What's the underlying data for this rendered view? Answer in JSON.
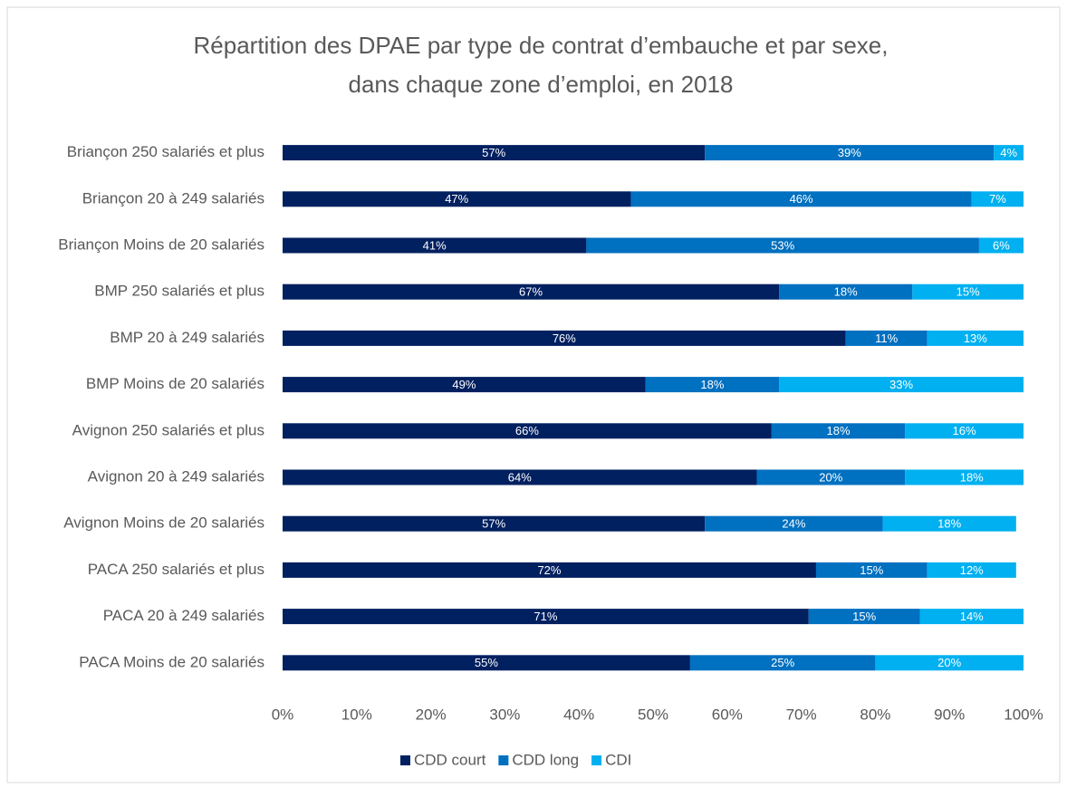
{
  "chart_data": {
    "type": "stacked_barh",
    "title": [
      "Répartition des DPAE par type de contrat d’embauche et par sexe,",
      "dans chaque zone d’emploi, en 2018"
    ],
    "categories": [
      "Briançon 250 salariés et plus",
      "Briançon 20 à 249 salariés",
      "Briançon Moins de 20 salariés",
      "BMP 250 salariés et plus",
      "BMP 20 à 249 salariés",
      "BMP Moins de 20 salariés",
      "Avignon 250 salariés et plus",
      "Avignon 20 à 249 salariés",
      "Avignon Moins de 20 salariés",
      "PACA 250 salariés et plus",
      "PACA 20 à 249 salariés",
      "PACA Moins de 20 salariés"
    ],
    "series": [
      {
        "name": "CDD court",
        "color": "#002060",
        "values": [
          57,
          47,
          41,
          67,
          76,
          49,
          66,
          64,
          57,
          72,
          71,
          55
        ],
        "value_labels": [
          "57%",
          "47%",
          "41%",
          "67%",
          "76%",
          "49%",
          "66%",
          "64%",
          "57%",
          "72%",
          "71%",
          "55%"
        ]
      },
      {
        "name": "CDD long",
        "color": "#0070c0",
        "values": [
          39,
          46,
          53,
          18,
          11,
          18,
          18,
          20,
          24,
          15,
          15,
          25
        ],
        "value_labels": [
          "39%",
          "46%",
          "53%",
          "18%",
          "11%",
          "18%",
          "18%",
          "20%",
          "24%",
          "15%",
          "15%",
          "25%"
        ]
      },
      {
        "name": "CDI",
        "color": "#00b0f0",
        "values": [
          4,
          7,
          6,
          15,
          13,
          33,
          16,
          18,
          18,
          12,
          14,
          20
        ],
        "value_labels": [
          "4%",
          "7%",
          "6%",
          "15%",
          "13%",
          "33%",
          "16%",
          "18%",
          "18%",
          "12%",
          "14%",
          "20%"
        ]
      }
    ],
    "xlim": [
      0,
      100
    ],
    "xticks": [
      {
        "value": 0,
        "label": "0%"
      },
      {
        "value": 10,
        "label": "10%"
      },
      {
        "value": 20,
        "label": "20%"
      },
      {
        "value": 30,
        "label": "30%"
      },
      {
        "value": 40,
        "label": "40%"
      },
      {
        "value": 50,
        "label": "50%"
      },
      {
        "value": 60,
        "label": "60%"
      },
      {
        "value": 70,
        "label": "70%"
      },
      {
        "value": 80,
        "label": "80%"
      },
      {
        "value": 90,
        "label": "90%"
      },
      {
        "value": 100,
        "label": "100%"
      }
    ],
    "legend": "bottom"
  }
}
